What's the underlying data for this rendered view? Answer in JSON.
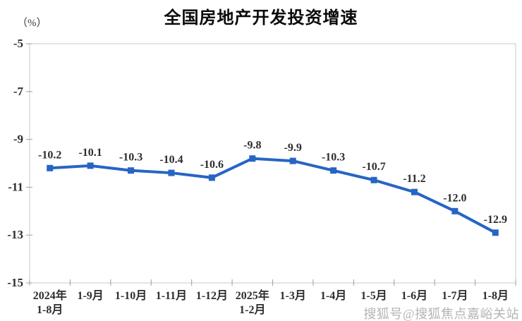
{
  "chart_data": {
    "type": "line",
    "title": "全国房地产开发投资增速",
    "unit_label": "（%）",
    "categories": [
      [
        "2024年",
        "1-8月"
      ],
      [
        "1-9月"
      ],
      [
        "1-10月"
      ],
      [
        "1-11月"
      ],
      [
        "1-12月"
      ],
      [
        "2025年",
        "1-2月"
      ],
      [
        "1-3月"
      ],
      [
        "1-4月"
      ],
      [
        "1-5月"
      ],
      [
        "1-6月"
      ],
      [
        "1-7月"
      ],
      [
        "1-8月"
      ]
    ],
    "values": [
      -10.2,
      -10.1,
      -10.3,
      -10.4,
      -10.6,
      -9.8,
      -9.9,
      -10.3,
      -10.7,
      -11.2,
      -12.0,
      -12.9
    ],
    "data_labels": [
      "-10.2",
      "-10.1",
      "-10.3",
      "-10.4",
      "-10.6",
      "-9.8",
      "-9.9",
      "-10.3",
      "-10.7",
      "-11.2",
      "-12.0",
      "-12.9"
    ],
    "y_ticks": [
      -5,
      -7,
      -9,
      -11,
      -13,
      -15
    ],
    "ylim": [
      -15,
      -5
    ],
    "xlabel": "",
    "ylabel": "（%）",
    "grid": false,
    "legend": false,
    "line_color": "#2665C3",
    "marker": "square",
    "label_color": "#2e2e2e",
    "axis_color": "#c9c9c9",
    "tick_color": "#9e9e9e"
  },
  "watermark": {
    "text": "搜狐号@搜狐焦点嘉峪关站"
  }
}
